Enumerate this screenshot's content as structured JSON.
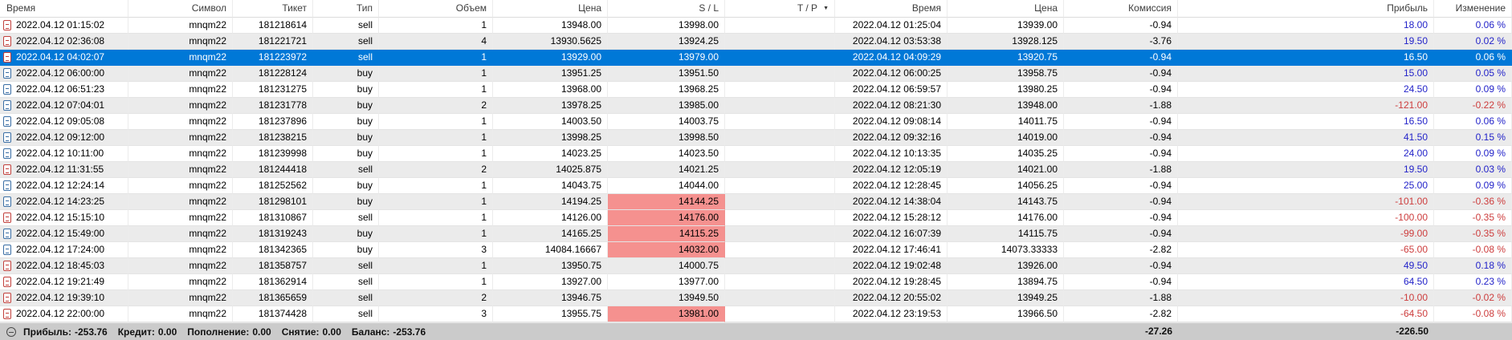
{
  "table": {
    "columns": [
      {
        "key": "time",
        "label": "Время"
      },
      {
        "key": "symbol",
        "label": "Символ"
      },
      {
        "key": "ticket",
        "label": "Тикет"
      },
      {
        "key": "type",
        "label": "Тип"
      },
      {
        "key": "volume",
        "label": "Объем"
      },
      {
        "key": "price",
        "label": "Цена"
      },
      {
        "key": "sl",
        "label": "S / L"
      },
      {
        "key": "tp",
        "label": "T / P"
      },
      {
        "key": "time_close",
        "label": "Время"
      },
      {
        "key": "price_close",
        "label": "Цена"
      },
      {
        "key": "commission",
        "label": "Комиссия"
      },
      {
        "key": "profit",
        "label": "Прибыль"
      },
      {
        "key": "change",
        "label": "Изменение"
      }
    ],
    "rows": [
      {
        "time": "2022.04.12 01:15:02",
        "symbol": "mnqm22",
        "ticket": "181218614",
        "type": "sell",
        "volume": "1",
        "price": "13948.00",
        "sl": "13998.00",
        "sl_alert": false,
        "tp": "",
        "time_close": "2022.04.12 01:25:04",
        "price_close": "13939.00",
        "commission": "-0.94",
        "profit": "18.00",
        "change": "0.06 %",
        "selected": false
      },
      {
        "time": "2022.04.12 02:36:08",
        "symbol": "mnqm22",
        "ticket": "181221721",
        "type": "sell",
        "volume": "4",
        "price": "13930.5625",
        "sl": "13924.25",
        "sl_alert": false,
        "tp": "",
        "time_close": "2022.04.12 03:53:38",
        "price_close": "13928.125",
        "commission": "-3.76",
        "profit": "19.50",
        "change": "0.02 %",
        "selected": false
      },
      {
        "time": "2022.04.12 04:02:07",
        "symbol": "mnqm22",
        "ticket": "181223972",
        "type": "sell",
        "volume": "1",
        "price": "13929.00",
        "sl": "13979.00",
        "sl_alert": false,
        "tp": "",
        "time_close": "2022.04.12 04:09:29",
        "price_close": "13920.75",
        "commission": "-0.94",
        "profit": "16.50",
        "change": "0.06 %",
        "selected": true
      },
      {
        "time": "2022.04.12 06:00:00",
        "symbol": "mnqm22",
        "ticket": "181228124",
        "type": "buy",
        "volume": "1",
        "price": "13951.25",
        "sl": "13951.50",
        "sl_alert": false,
        "tp": "",
        "time_close": "2022.04.12 06:00:25",
        "price_close": "13958.75",
        "commission": "-0.94",
        "profit": "15.00",
        "change": "0.05 %",
        "selected": false
      },
      {
        "time": "2022.04.12 06:51:23",
        "symbol": "mnqm22",
        "ticket": "181231275",
        "type": "buy",
        "volume": "1",
        "price": "13968.00",
        "sl": "13968.25",
        "sl_alert": false,
        "tp": "",
        "time_close": "2022.04.12 06:59:57",
        "price_close": "13980.25",
        "commission": "-0.94",
        "profit": "24.50",
        "change": "0.09 %",
        "selected": false
      },
      {
        "time": "2022.04.12 07:04:01",
        "symbol": "mnqm22",
        "ticket": "181231778",
        "type": "buy",
        "volume": "2",
        "price": "13978.25",
        "sl": "13985.00",
        "sl_alert": false,
        "tp": "",
        "time_close": "2022.04.12 08:21:30",
        "price_close": "13948.00",
        "commission": "-1.88",
        "profit": "-121.00",
        "change": "-0.22 %",
        "selected": false
      },
      {
        "time": "2022.04.12 09:05:08",
        "symbol": "mnqm22",
        "ticket": "181237896",
        "type": "buy",
        "volume": "1",
        "price": "14003.50",
        "sl": "14003.75",
        "sl_alert": false,
        "tp": "",
        "time_close": "2022.04.12 09:08:14",
        "price_close": "14011.75",
        "commission": "-0.94",
        "profit": "16.50",
        "change": "0.06 %",
        "selected": false
      },
      {
        "time": "2022.04.12 09:12:00",
        "symbol": "mnqm22",
        "ticket": "181238215",
        "type": "buy",
        "volume": "1",
        "price": "13998.25",
        "sl": "13998.50",
        "sl_alert": false,
        "tp": "",
        "time_close": "2022.04.12 09:32:16",
        "price_close": "14019.00",
        "commission": "-0.94",
        "profit": "41.50",
        "change": "0.15 %",
        "selected": false
      },
      {
        "time": "2022.04.12 10:11:00",
        "symbol": "mnqm22",
        "ticket": "181239998",
        "type": "buy",
        "volume": "1",
        "price": "14023.25",
        "sl": "14023.50",
        "sl_alert": false,
        "tp": "",
        "time_close": "2022.04.12 10:13:35",
        "price_close": "14035.25",
        "commission": "-0.94",
        "profit": "24.00",
        "change": "0.09 %",
        "selected": false
      },
      {
        "time": "2022.04.12 11:31:55",
        "symbol": "mnqm22",
        "ticket": "181244418",
        "type": "sell",
        "volume": "2",
        "price": "14025.875",
        "sl": "14021.25",
        "sl_alert": false,
        "tp": "",
        "time_close": "2022.04.12 12:05:19",
        "price_close": "14021.00",
        "commission": "-1.88",
        "profit": "19.50",
        "change": "0.03 %",
        "selected": false
      },
      {
        "time": "2022.04.12 12:24:14",
        "symbol": "mnqm22",
        "ticket": "181252562",
        "type": "buy",
        "volume": "1",
        "price": "14043.75",
        "sl": "14044.00",
        "sl_alert": false,
        "tp": "",
        "time_close": "2022.04.12 12:28:45",
        "price_close": "14056.25",
        "commission": "-0.94",
        "profit": "25.00",
        "change": "0.09 %",
        "selected": false
      },
      {
        "time": "2022.04.12 14:23:25",
        "symbol": "mnqm22",
        "ticket": "181298101",
        "type": "buy",
        "volume": "1",
        "price": "14194.25",
        "sl": "14144.25",
        "sl_alert": true,
        "tp": "",
        "time_close": "2022.04.12 14:38:04",
        "price_close": "14143.75",
        "commission": "-0.94",
        "profit": "-101.00",
        "change": "-0.36 %",
        "selected": false
      },
      {
        "time": "2022.04.12 15:15:10",
        "symbol": "mnqm22",
        "ticket": "181310867",
        "type": "sell",
        "volume": "1",
        "price": "14126.00",
        "sl": "14176.00",
        "sl_alert": true,
        "tp": "",
        "time_close": "2022.04.12 15:28:12",
        "price_close": "14176.00",
        "commission": "-0.94",
        "profit": "-100.00",
        "change": "-0.35 %",
        "selected": false
      },
      {
        "time": "2022.04.12 15:49:00",
        "symbol": "mnqm22",
        "ticket": "181319243",
        "type": "buy",
        "volume": "1",
        "price": "14165.25",
        "sl": "14115.25",
        "sl_alert": true,
        "tp": "",
        "time_close": "2022.04.12 16:07:39",
        "price_close": "14115.75",
        "commission": "-0.94",
        "profit": "-99.00",
        "change": "-0.35 %",
        "selected": false
      },
      {
        "time": "2022.04.12 17:24:00",
        "symbol": "mnqm22",
        "ticket": "181342365",
        "type": "buy",
        "volume": "3",
        "price": "14084.16667",
        "sl": "14032.00",
        "sl_alert": true,
        "tp": "",
        "time_close": "2022.04.12 17:46:41",
        "price_close": "14073.33333",
        "commission": "-2.82",
        "profit": "-65.00",
        "change": "-0.08 %",
        "selected": false
      },
      {
        "time": "2022.04.12 18:45:03",
        "symbol": "mnqm22",
        "ticket": "181358757",
        "type": "sell",
        "volume": "1",
        "price": "13950.75",
        "sl": "14000.75",
        "sl_alert": false,
        "tp": "",
        "time_close": "2022.04.12 19:02:48",
        "price_close": "13926.00",
        "commission": "-0.94",
        "profit": "49.50",
        "change": "0.18 %",
        "selected": false
      },
      {
        "time": "2022.04.12 19:21:49",
        "symbol": "mnqm22",
        "ticket": "181362914",
        "type": "sell",
        "volume": "1",
        "price": "13927.00",
        "sl": "13977.00",
        "sl_alert": false,
        "tp": "",
        "time_close": "2022.04.12 19:28:45",
        "price_close": "13894.75",
        "commission": "-0.94",
        "profit": "64.50",
        "change": "0.23 %",
        "selected": false
      },
      {
        "time": "2022.04.12 19:39:10",
        "symbol": "mnqm22",
        "ticket": "181365659",
        "type": "sell",
        "volume": "2",
        "price": "13946.75",
        "sl": "13949.50",
        "sl_alert": false,
        "tp": "",
        "time_close": "2022.04.12 20:55:02",
        "price_close": "13949.25",
        "commission": "-1.88",
        "profit": "-10.00",
        "change": "-0.02 %",
        "selected": false
      },
      {
        "time": "2022.04.12 22:00:00",
        "symbol": "mnqm22",
        "ticket": "181374428",
        "type": "sell",
        "volume": "3",
        "price": "13955.75",
        "sl": "13981.00",
        "sl_alert": true,
        "tp": "",
        "time_close": "2022.04.12 23:19:53",
        "price_close": "13966.50",
        "commission": "-2.82",
        "profit": "-64.50",
        "change": "-0.08 %",
        "selected": false
      }
    ]
  },
  "summary": {
    "profit_label": "Прибыль:",
    "profit": "-253.76",
    "credit_label": "Кредит:",
    "credit": "0.00",
    "deposit_label": "Пополнение:",
    "deposit": "0.00",
    "withdraw_label": "Снятие:",
    "withdraw": "0.00",
    "balance_label": "Баланс:",
    "balance": "-253.76",
    "commission_total": "-27.26",
    "profit_total": "-226.50"
  },
  "icons": {
    "tp_filter": "▼"
  },
  "colors": {
    "selection": "#0078d7",
    "alert_pink": "#f5918f",
    "profit_text_blue": "#2323c9",
    "loss_text_red": "#cd3d3d",
    "row_alt_gray": "#ebebeb",
    "footer_gray": "#cbcbcb",
    "sell_icon": "#c2403c",
    "buy_icon": "#3a6ea5"
  }
}
